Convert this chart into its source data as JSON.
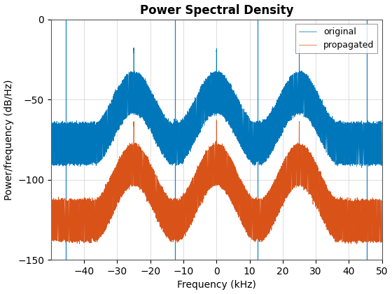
{
  "title": "Power Spectral Density",
  "xlabel": "Frequency (kHz)",
  "ylabel": "Power/frequency (dB/Hz)",
  "xlim": [
    -50,
    50
  ],
  "ylim": [
    -150,
    0
  ],
  "xticks": [
    -40,
    -30,
    -20,
    -10,
    0,
    10,
    20,
    30,
    40,
    50
  ],
  "yticks": [
    -150,
    -100,
    -50,
    0
  ],
  "original_color": "#0077BB",
  "propagated_color": "#D95319",
  "vline_color": "#0077BB",
  "noise_floor_original": -65,
  "noise_floor_propagated": -113,
  "peaks_kHz": [
    -25,
    0,
    25
  ],
  "peak_height_original": -33,
  "peak_height_propagated": -78,
  "vlines_kHz": [
    -45.5,
    -12.5,
    12.5,
    45.5
  ],
  "figsize": [
    5.6,
    4.2
  ],
  "dpi": 100
}
